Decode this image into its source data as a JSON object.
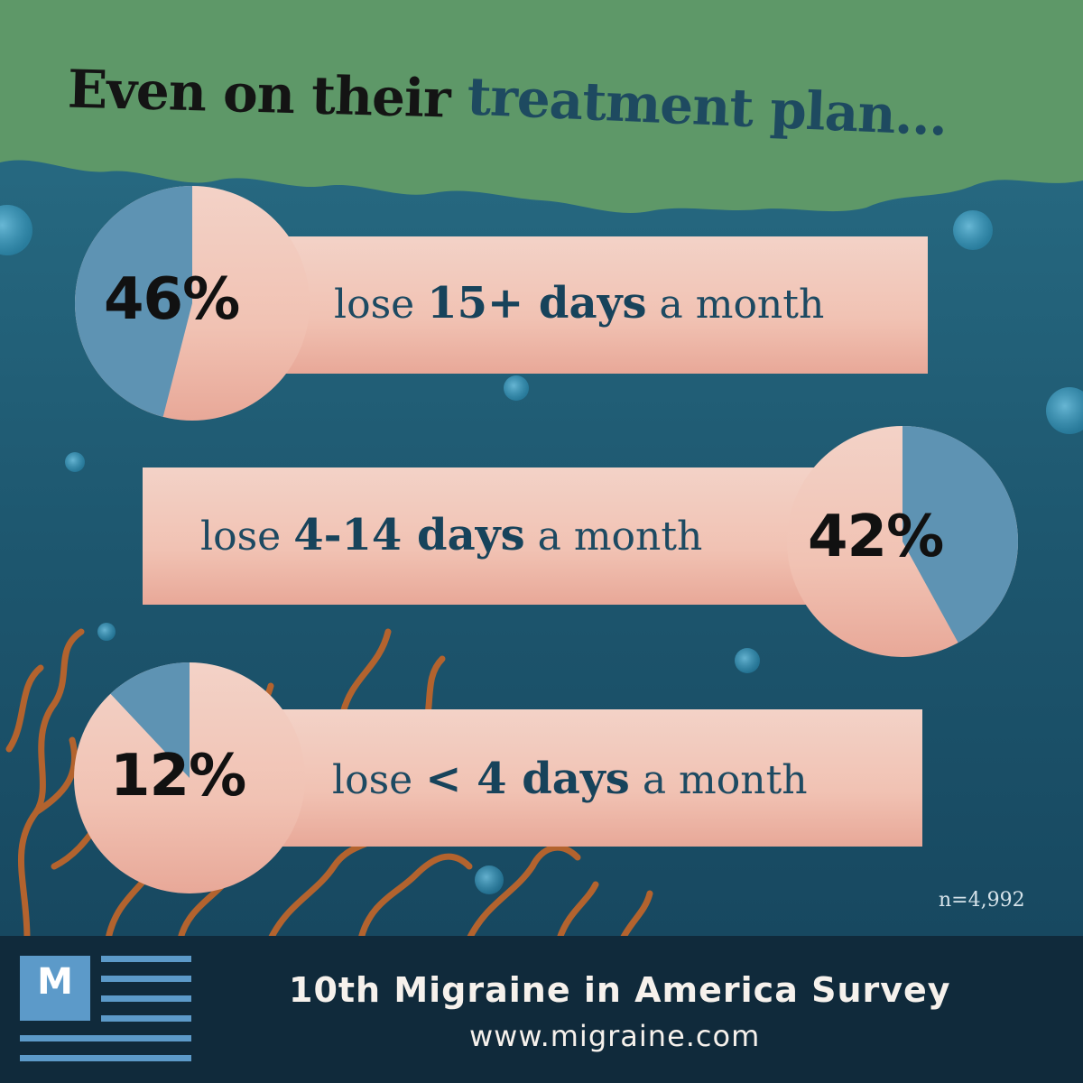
{
  "title": {
    "part1": "Even on their",
    "part2": "treatment plan..."
  },
  "chart_data": {
    "type": "pie",
    "title": "Even on their treatment plan...",
    "categories": [
      "lose 15+ days a month",
      "lose 4-14 days a month",
      "lose < 4 days a month"
    ],
    "values": [
      46,
      42,
      12
    ],
    "unit": "%"
  },
  "stats": [
    {
      "pct": "46%",
      "value": 46,
      "pre": "lose",
      "bold": "15+ days",
      "post": "a month"
    },
    {
      "pct": "42%",
      "value": 42,
      "pre": "lose",
      "bold": "4-14 days",
      "post": "a month"
    },
    {
      "pct": "12%",
      "value": 12,
      "pre": "lose",
      "bold": "< 4 days",
      "post": "a month"
    }
  ],
  "sample_size": "n=4,992",
  "footer": {
    "logo_letter": "M",
    "title": "10th Migraine in America Survey",
    "url": "www.migraine.com"
  },
  "colors": {
    "ocean": "#1f5a72",
    "sand": "#f1c3b4",
    "slice": "#5e93b3",
    "green": "#5e9868",
    "coral": "#b3632e"
  }
}
